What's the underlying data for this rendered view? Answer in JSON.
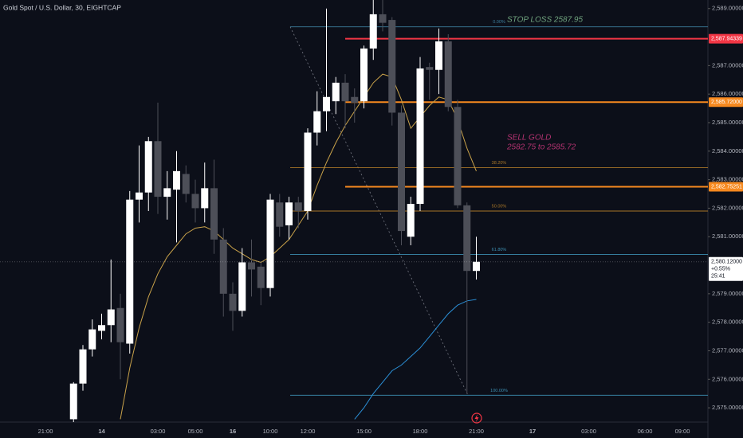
{
  "chart_data": {
    "type": "candlestick",
    "title": "Gold Spot / U.S. Dollar, 30, EIGHTCAP",
    "categories": [
      "21:00",
      null,
      null,
      null,
      null,
      null,
      "14",
      null,
      null,
      null,
      null,
      null,
      "03:00",
      null,
      null,
      null,
      "05:00",
      null,
      null,
      null,
      "16",
      null,
      null,
      null,
      "10:00",
      null,
      null,
      null,
      "12:00",
      null,
      null,
      null,
      null,
      null,
      "15:00",
      null,
      null,
      null,
      null,
      null,
      "18:00",
      null,
      null,
      null,
      null,
      null,
      "21:00",
      null,
      null,
      null,
      null,
      null,
      "17",
      null,
      null,
      null,
      null,
      null,
      "03:00",
      null,
      null,
      null,
      null,
      null,
      "06:00",
      null,
      null,
      null,
      "09:00",
      null
    ],
    "open": [
      null,
      null,
      null,
      2574.6,
      2575.85,
      2577.05,
      2577.7,
      2577.9,
      2578.5,
      2577.25,
      2582.3,
      2582.55,
      2584.35,
      2582.4,
      2582.65,
      2583.2,
      2582.5,
      2582,
      2582.7,
      2580.9,
      2579,
      2578.4,
      2580.1,
      2579.95,
      2579.2,
      2582.2,
      2581.4,
      2582.2,
      2581.9,
      2584.65,
      2585.4,
      2585.75,
      2586.4,
      2585.9,
      2585.75,
      2587.6,
      2588.8,
      2588.6,
      2585.35,
      2581,
      2582.15,
      2586.95,
      2586.85,
      2587.85,
      2585.55,
      2582.1,
      2579.8,
      null,
      null,
      null,
      null,
      null,
      null,
      null,
      null,
      null,
      null,
      null,
      null,
      null,
      null,
      null,
      null,
      null,
      null,
      null,
      null,
      null,
      null,
      null
    ],
    "high": [
      null,
      null,
      null,
      2575.9,
      2577.2,
      2578.1,
      2578.3,
      2580.2,
      2579,
      2582.6,
      2584.2,
      2584.5,
      2585.7,
      2583.3,
      2584,
      2583.5,
      2583,
      2583.6,
      2583.7,
      2581.3,
      2579.4,
      2580.6,
      2580.9,
      2580.1,
      2582.5,
      2582.5,
      2582.4,
      2582.4,
      2584.8,
      2586.1,
      2589,
      2586.6,
      2586.7,
      2586.2,
      2587.7,
      2589.3,
      2589.3,
      2588.7,
      2585.6,
      2582.4,
      2587.3,
      2587.1,
      2588.3,
      2588.1,
      2585.8,
      2582.2,
      2581,
      null,
      null,
      null,
      null,
      null,
      null,
      null,
      null,
      null,
      null,
      null,
      null,
      null,
      null,
      null,
      null,
      null,
      null,
      null,
      null,
      null,
      null,
      null
    ],
    "low": [
      null,
      null,
      null,
      2574.5,
      2575.6,
      2576.8,
      2577.4,
      2577.3,
      2576,
      2576.9,
      2581.5,
      2581.9,
      2581.8,
      2581.6,
      2580.8,
      2582.2,
      2581.5,
      2581.5,
      2580.4,
      2578.2,
      2577.7,
      2578.2,
      2578.9,
      2578.6,
      2578.9,
      2581,
      2580.9,
      2581.3,
      2581.6,
      2584.2,
      2584.7,
      2585.3,
      2584.8,
      2585,
      2585.5,
      2587.2,
      2588.2,
      2584.9,
      2580.7,
      2580.7,
      2581.9,
      2585.8,
      2586,
      2585.4,
      2582,
      2575.5,
      2579.5,
      null,
      null,
      null,
      null,
      null,
      null,
      null,
      null,
      null,
      null,
      null,
      null,
      null,
      null,
      null,
      null,
      null,
      null,
      null,
      null,
      null,
      null,
      null
    ],
    "close": [
      null,
      null,
      null,
      2575.85,
      2577.05,
      2577.75,
      2577.9,
      2578.45,
      2577.3,
      2582.3,
      2582.55,
      2584.35,
      2582.4,
      2582.7,
      2583.3,
      2582.5,
      2582,
      2582.7,
      2580.9,
      2579,
      2578.4,
      2580.1,
      2579.85,
      2579.2,
      2582.3,
      2581.35,
      2582.2,
      2581.9,
      2584.65,
      2585.4,
      2585.9,
      2586.4,
      2585.75,
      2585.7,
      2587.6,
      2588.8,
      2588.5,
      2585.35,
      2581.2,
      2582.15,
      2586.9,
      2586.85,
      2587.85,
      2585.55,
      2582.1,
      2579.8,
      2580.12,
      null,
      null,
      null,
      null,
      null,
      null,
      null,
      null,
      null,
      null,
      null,
      null,
      null,
      null,
      null,
      null,
      null,
      null,
      null,
      null,
      null,
      null,
      null
    ],
    "up_color": "#ffffff",
    "down_color": "#4d4f58",
    "lines": [
      {
        "color": "#c9a24a",
        "values": [
          null,
          null,
          null,
          null,
          null,
          null,
          null,
          null,
          2574.6,
          2576.4,
          2577.8,
          2578.9,
          2579.7,
          2580.3,
          2580.7,
          2581.1,
          2581.3,
          2581.35,
          2581.2,
          2580.9,
          2580.6,
          2580.4,
          2580.2,
          2580.1,
          2580.3,
          2580.6,
          2580.9,
          2581.4,
          2581.9,
          2582.8,
          2583.6,
          2584.3,
          2584.9,
          2585.4,
          2585.9,
          2586.4,
          2586.7,
          2586.6,
          2585.8,
          2584.8,
          2585.2,
          2585.6,
          2585.9,
          2585.8,
          2585.1,
          2584.1,
          2583.3,
          null,
          null,
          null,
          null,
          null,
          null,
          null,
          null,
          null,
          null,
          null,
          null,
          null,
          null,
          null,
          null,
          null,
          null,
          null,
          null,
          null,
          null,
          null
        ]
      },
      {
        "color": "#2b8fd6",
        "values": [
          null,
          null,
          null,
          null,
          null,
          null,
          null,
          null,
          null,
          null,
          null,
          null,
          null,
          null,
          null,
          null,
          null,
          null,
          null,
          null,
          null,
          null,
          null,
          null,
          null,
          null,
          null,
          null,
          null,
          null,
          null,
          null,
          null,
          2574.6,
          2575.0,
          2575.5,
          2575.9,
          2576.3,
          2576.5,
          2576.8,
          2577.1,
          2577.5,
          2577.9,
          2578.3,
          2578.6,
          2578.75,
          2578.8,
          null,
          null,
          null,
          null,
          null,
          null,
          null,
          null,
          null,
          null,
          null,
          null,
          null,
          null,
          null,
          null,
          null,
          null,
          null,
          null,
          null,
          null,
          null
        ]
      }
    ],
    "levels": [
      {
        "value": 2587.94339,
        "label": "2,587.94339",
        "color": "#f23645"
      },
      {
        "value": 2585.72,
        "label": "2,585.72000",
        "color": "#f6891f"
      },
      {
        "value": 2582.75251,
        "label": "2,582.75251",
        "color": "#f6891f"
      }
    ],
    "fib": {
      "start": 2588.36,
      "end": 2575.44,
      "levels": [
        {
          "value": 0,
          "label": "0.00%",
          "color": "#3d7f9e"
        },
        {
          "value": 38.2,
          "label": "38.20%",
          "color": "#a87628"
        },
        {
          "value": 50,
          "label": "50.00%",
          "color": "#a87628"
        },
        {
          "value": 61.8,
          "label": "61.80%",
          "color": "#3d8fb2"
        },
        {
          "value": 100,
          "label": "100.00%",
          "color": "#3d8fb2"
        }
      ]
    },
    "annotations": [
      {
        "text": "STOP LOSS 2587.95",
        "color": "#6fa27d"
      },
      {
        "text": "SELL GOLD",
        "color": "#b53371"
      },
      {
        "text": "2582.75 to 2585.72",
        "color": "#b53371"
      }
    ],
    "current": {
      "value": 2580.12,
      "label": "2,580.12000",
      "change": "+0.55%",
      "countdown": "25:41"
    },
    "ylim": [
      2574.5,
      2589.3
    ],
    "yticks": [
      {
        "value": 2589,
        "label": "2,589.00000"
      },
      {
        "value": 2587,
        "label": "2,587.00000"
      },
      {
        "value": 2586,
        "label": "2,586.00000"
      },
      {
        "value": 2585,
        "label": "2,585.00000"
      },
      {
        "value": 2584,
        "label": "2,584.00000"
      },
      {
        "value": 2583,
        "label": "2,583.00000"
      },
      {
        "value": 2582,
        "label": "2,582.00000"
      },
      {
        "value": 2581,
        "label": "2,581.00000"
      },
      {
        "value": 2579,
        "label": "2,579.00000"
      },
      {
        "value": 2578,
        "label": "2,578.00000"
      },
      {
        "value": 2577,
        "label": "2,577.00000"
      },
      {
        "value": 2576,
        "label": "2,576.00000"
      },
      {
        "value": 2575,
        "label": "2,575.00000"
      }
    ],
    "grid": false
  }
}
